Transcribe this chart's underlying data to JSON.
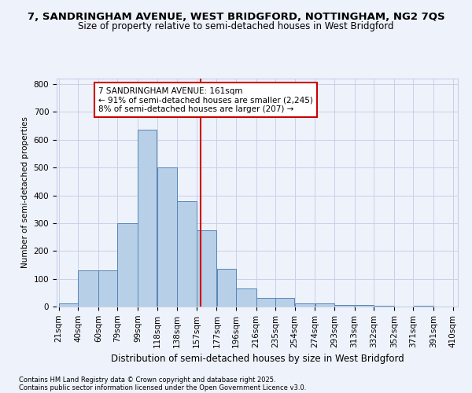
{
  "title_line1": "7, SANDRINGHAM AVENUE, WEST BRIDGFORD, NOTTINGHAM, NG2 7QS",
  "title_line2": "Size of property relative to semi-detached houses in West Bridgford",
  "xlabel": "Distribution of semi-detached houses by size in West Bridgford",
  "ylabel": "Number of semi-detached properties",
  "footnote1": "Contains HM Land Registry data © Crown copyright and database right 2025.",
  "footnote2": "Contains public sector information licensed under the Open Government Licence v3.0.",
  "bar_edges": [
    21,
    40,
    60,
    79,
    99,
    118,
    138,
    157,
    177,
    196,
    216,
    235,
    254,
    274,
    293,
    313,
    332,
    352,
    371,
    391,
    410
  ],
  "bar_heights": [
    10,
    130,
    130,
    300,
    635,
    500,
    380,
    275,
    135,
    65,
    30,
    30,
    12,
    12,
    5,
    5,
    2,
    0,
    2,
    0
  ],
  "property_size": 161,
  "property_label": "7 SANDRINGHAM AVENUE: 161sqm",
  "pct_smaller": 91,
  "count_smaller": 2245,
  "pct_larger": 8,
  "count_larger": 207,
  "bar_color": "#b8cfe8",
  "bar_edge_color": "#5585b5",
  "highlight_line_color": "#cc0000",
  "annotation_box_color": "#cc0000",
  "background_color": "#eef2fb",
  "grid_color": "#c8d0e8",
  "ylim": [
    0,
    820
  ],
  "yticks": [
    0,
    100,
    200,
    300,
    400,
    500,
    600,
    700,
    800
  ],
  "tick_label_fontsize": 7.5,
  "title1_fontsize": 9.5,
  "title2_fontsize": 8.5,
  "xlabel_fontsize": 8.5,
  "ylabel_fontsize": 7.5,
  "annotation_fontsize": 7.5
}
